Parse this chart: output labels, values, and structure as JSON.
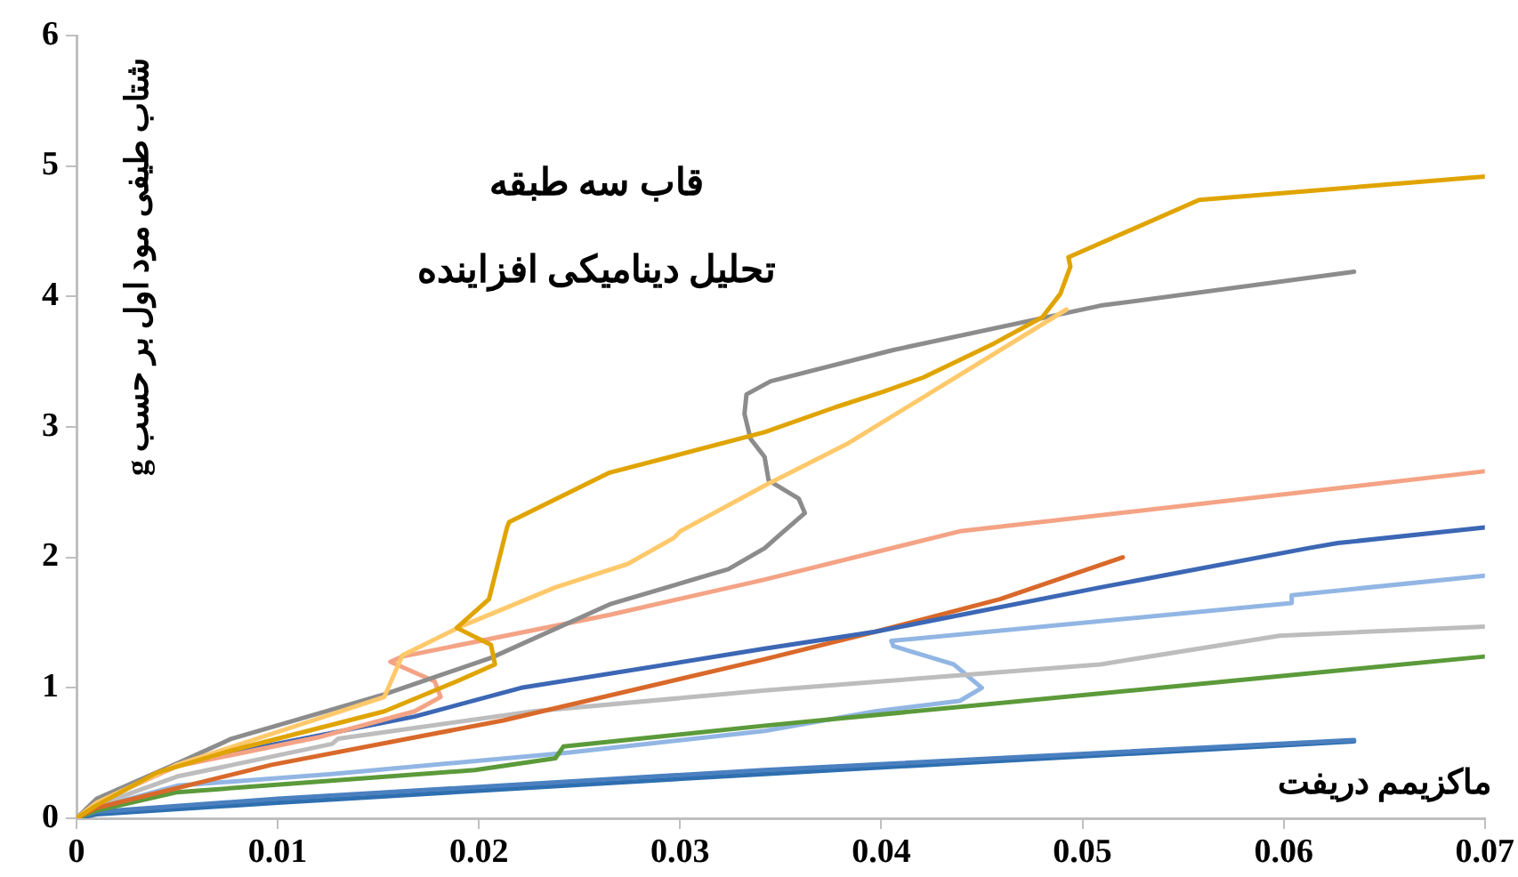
{
  "chart_data": {
    "type": "line",
    "title": "قاب سه طبقه",
    "subtitle": "تحلیل دینامیکی افزاینده",
    "xlabel": "ماکزیمم دریفت",
    "ylabel": "شتاب طیفی مود اول بر حسب g",
    "xlim": [
      0,
      0.07
    ],
    "xticks": [
      0,
      0.01,
      0.02,
      0.03,
      0.04,
      0.05,
      0.06,
      0.07
    ],
    "ylim": [
      0,
      6
    ],
    "yticks": [
      0,
      1,
      2,
      3,
      4,
      5,
      6
    ],
    "grid": false,
    "marker": "none",
    "series": [
      {
        "color": "#e0a400",
        "x": [
          0,
          0.001,
          0.004,
          0.0077,
          0.0153,
          0.0189,
          0.0208,
          0.0206,
          0.0189,
          0.0205,
          0.0214,
          0.0215,
          0.0265,
          0.0295,
          0.0342,
          0.0377,
          0.0401,
          0.0421,
          0.0456,
          0.048,
          0.0489,
          0.0494,
          0.0493,
          0.0558,
          0.07
        ],
        "values": [
          0,
          0.1,
          0.35,
          0.52,
          0.82,
          1.05,
          1.18,
          1.33,
          1.46,
          1.68,
          2.23,
          2.27,
          2.65,
          2.77,
          2.96,
          3.15,
          3.27,
          3.38,
          3.64,
          3.84,
          4.02,
          4.23,
          4.3,
          4.74,
          4.92
        ]
      },
      {
        "color": "#ffc96b",
        "x": [
          0,
          0.001,
          0.005,
          0.0153,
          0.016,
          0.0162,
          0.0191,
          0.0238,
          0.0274,
          0.0297,
          0.03,
          0.0342,
          0.0383,
          0.0492
        ],
        "values": [
          0,
          0.12,
          0.41,
          0.93,
          1.18,
          1.25,
          1.47,
          1.77,
          1.95,
          2.15,
          2.2,
          2.55,
          2.87,
          3.9
        ]
      },
      {
        "color": "#8c8c8c",
        "x": [
          0,
          0.001,
          0.005,
          0.0077,
          0.0153,
          0.0206,
          0.0265,
          0.0324,
          0.0342,
          0.035,
          0.0362,
          0.0359,
          0.0344,
          0.0342,
          0.0335,
          0.0332,
          0.0333,
          0.0345,
          0.0406,
          0.0509,
          0.0635
        ],
        "values": [
          0,
          0.15,
          0.42,
          0.61,
          0.95,
          1.23,
          1.64,
          1.91,
          2.07,
          2.18,
          2.34,
          2.45,
          2.59,
          2.77,
          2.91,
          3.1,
          3.25,
          3.35,
          3.59,
          3.93,
          4.19
        ]
      },
      {
        "color": "#f4a385",
        "x": [
          0,
          0.001,
          0.005,
          0.012,
          0.0168,
          0.0181,
          0.0178,
          0.0156,
          0.0162,
          0.0265,
          0.0342,
          0.0439,
          0.07
        ],
        "values": [
          0,
          0.12,
          0.4,
          0.62,
          0.82,
          0.93,
          1.05,
          1.2,
          1.24,
          1.56,
          1.83,
          2.2,
          2.66
        ]
      },
      {
        "color": "#3c67b5",
        "x": [
          0,
          0.001,
          0.005,
          0.0168,
          0.0221,
          0.0342,
          0.0397,
          0.0509,
          0.0612,
          0.0627,
          0.07
        ],
        "values": [
          0,
          0.12,
          0.42,
          0.78,
          1.0,
          1.3,
          1.43,
          1.77,
          2.07,
          2.11,
          2.23
        ]
      },
      {
        "color": "#d9692a",
        "x": [
          0,
          0.001,
          0.0097,
          0.0212,
          0.0342,
          0.0397,
          0.0459,
          0.052
        ],
        "values": [
          0,
          0.08,
          0.41,
          0.75,
          1.22,
          1.43,
          1.68,
          2.0
        ]
      },
      {
        "color": "#bdbdbd",
        "x": [
          0,
          0.001,
          0.005,
          0.0127,
          0.013,
          0.0227,
          0.0342,
          0.0509,
          0.0598,
          0.07
        ],
        "values": [
          0,
          0.1,
          0.32,
          0.57,
          0.61,
          0.82,
          0.98,
          1.18,
          1.4,
          1.47
        ]
      },
      {
        "color": "#5b9a3a",
        "x": [
          0,
          0.001,
          0.005,
          0.0198,
          0.0238,
          0.0242,
          0.0342,
          0.07
        ],
        "values": [
          0,
          0.06,
          0.2,
          0.37,
          0.46,
          0.55,
          0.71,
          1.24
        ]
      },
      {
        "color": "#92b6e4",
        "x": [
          0,
          0.001,
          0.005,
          0.0127,
          0.0242,
          0.0342,
          0.0397,
          0.0439,
          0.045,
          0.0436,
          0.0406,
          0.0405,
          0.0604,
          0.0604,
          0.07
        ],
        "values": [
          0,
          0.08,
          0.25,
          0.34,
          0.5,
          0.67,
          0.82,
          0.9,
          1.0,
          1.18,
          1.32,
          1.36,
          1.65,
          1.71,
          1.86
        ]
      },
      {
        "color": "#4a80c0",
        "x": [
          0,
          0.001,
          0.01,
          0.0342,
          0.0635
        ],
        "values": [
          0,
          0.05,
          0.15,
          0.37,
          0.6
        ]
      },
      {
        "color": "#2e6fb0",
        "x": [
          0,
          0.001,
          0.01,
          0.0342,
          0.0635
        ],
        "values": [
          0,
          0.03,
          0.12,
          0.34,
          0.59
        ]
      }
    ]
  }
}
